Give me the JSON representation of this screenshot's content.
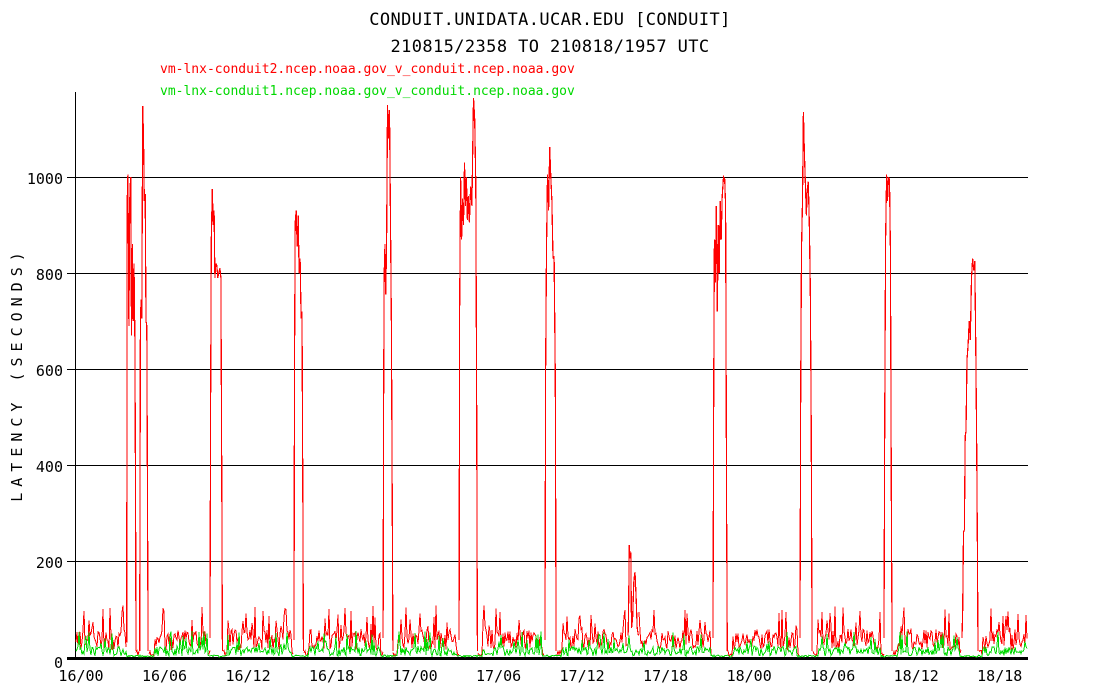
{
  "chart_data": {
    "type": "line",
    "title": "CONDUIT.UNIDATA.UCAR.EDU [CONDUIT]",
    "subtitle": "210815/2358 TO 210818/1957 UTC",
    "ylabel": "LATENCY (SECONDS)",
    "xlabel": "",
    "grid": "horizontal",
    "legend_position": "top-left",
    "ylim": [
      0,
      1177
    ],
    "xlim_hours": [
      -0.43,
      68.03
    ],
    "x_axis_note": "day/hour UTC, hours measured from 16/00",
    "y_ticks": [
      0,
      200,
      400,
      600,
      800,
      1000
    ],
    "x_tick_hours": [
      0,
      6,
      12,
      18,
      24,
      30,
      36,
      42,
      48,
      54,
      60,
      66
    ],
    "x_tick_labels": [
      "16/00",
      "16/06",
      "16/12",
      "16/18",
      "17/00",
      "17/06",
      "17/12",
      "17/18",
      "18/00",
      "18/06",
      "18/12",
      "18/18"
    ],
    "series": [
      {
        "name": "vm-lnx-conduit2.ncep.noaa.gov_v_conduit.ncep.noaa.gov",
        "color": "#ff0000",
        "kind": "noisy-baseline-with-spikes",
        "baseline_noise": {
          "seed": 7,
          "base_min": 14,
          "base_span": 44,
          "burst_prob": 0.12,
          "burst_min": 55,
          "burst_span": 55,
          "quiet_max": 12
        },
        "spikes": [
          {
            "points": [
              [
                3.28,
                30
              ],
              [
                3.32,
                950
              ],
              [
                3.37,
                1005
              ],
              [
                3.44,
                690
              ],
              [
                3.51,
                970
              ],
              [
                3.57,
                1000
              ],
              [
                3.63,
                670
              ],
              [
                3.69,
                860
              ],
              [
                3.75,
                700
              ],
              [
                3.81,
                820
              ],
              [
                3.87,
                660
              ],
              [
                3.92,
                300
              ],
              [
                3.95,
                12
              ]
            ],
            "quiet_before": 0,
            "quiet_until": 4.22,
            "suppress_green": true
          },
          {
            "points": [
              [
                4.22,
                12
              ],
              [
                4.27,
                700
              ],
              [
                4.32,
                745
              ],
              [
                4.37,
                705
              ],
              [
                4.43,
                1148
              ],
              [
                4.49,
                1085
              ],
              [
                4.55,
                950
              ],
              [
                4.61,
                965
              ],
              [
                4.67,
                700
              ],
              [
                4.73,
                690
              ],
              [
                4.78,
                320
              ],
              [
                4.82,
                12
              ]
            ],
            "quiet_before": 0,
            "quiet_until": 5.25,
            "suppress_green": true
          },
          {
            "points": [
              [
                9.27,
                40
              ],
              [
                9.31,
                520
              ],
              [
                9.36,
                870
              ],
              [
                9.43,
                975
              ],
              [
                9.5,
                900
              ],
              [
                9.56,
                930
              ],
              [
                9.62,
                790
              ],
              [
                9.69,
                820
              ],
              [
                9.76,
                815
              ],
              [
                9.83,
                790
              ],
              [
                9.9,
                800
              ],
              [
                9.98,
                810
              ],
              [
                10.05,
                790
              ],
              [
                10.12,
                300
              ],
              [
                10.16,
                12
              ]
            ],
            "quiet_before": 0.2,
            "quiet_until": 10.55,
            "suppress_green": true
          },
          {
            "points": [
              [
                15.3,
                35
              ],
              [
                15.34,
                600
              ],
              [
                15.39,
                905
              ],
              [
                15.46,
                930
              ],
              [
                15.53,
                855
              ],
              [
                15.6,
                920
              ],
              [
                15.67,
                800
              ],
              [
                15.74,
                830
              ],
              [
                15.81,
                705
              ],
              [
                15.88,
                720
              ],
              [
                15.94,
                300
              ],
              [
                15.98,
                12
              ]
            ],
            "quiet_before": 0.2,
            "quiet_until": 16.33,
            "suppress_green": true
          },
          {
            "points": [
              [
                21.7,
                40
              ],
              [
                21.74,
                520
              ],
              [
                21.78,
                800
              ],
              [
                21.84,
                860
              ],
              [
                21.9,
                755
              ],
              [
                21.96,
                890
              ],
              [
                22.02,
                1150
              ],
              [
                22.09,
                1080
              ],
              [
                22.16,
                1140
              ],
              [
                22.23,
                930
              ],
              [
                22.3,
                690
              ],
              [
                22.36,
                300
              ],
              [
                22.41,
                12
              ]
            ],
            "quiet_before": 0.2,
            "quiet_until": 22.73,
            "suppress_green": true
          },
          {
            "points": [
              [
                27.16,
                35
              ],
              [
                27.2,
                715
              ],
              [
                27.27,
                1000
              ],
              [
                27.34,
                870
              ],
              [
                27.41,
                955
              ],
              [
                27.48,
                900
              ],
              [
                27.55,
                1030
              ],
              [
                27.62,
                940
              ],
              [
                27.69,
                1000
              ],
              [
                27.76,
                910
              ],
              [
                27.83,
                960
              ],
              [
                27.9,
                905
              ],
              [
                27.99,
                980
              ],
              [
                28.08,
                940
              ],
              [
                28.2,
                1165
              ],
              [
                28.28,
                1120
              ],
              [
                28.36,
                985
              ],
              [
                28.43,
                500
              ],
              [
                28.48,
                12
              ]
            ],
            "quiet_before": 0.2,
            "quiet_until": 28.83,
            "suppress_green": true
          },
          {
            "points": [
              [
                33.33,
                35
              ],
              [
                33.38,
                590
              ],
              [
                33.44,
                850
              ],
              [
                33.51,
                1005
              ],
              [
                33.59,
                930
              ],
              [
                33.67,
                1062
              ],
              [
                33.75,
                1000
              ],
              [
                33.83,
                950
              ],
              [
                33.91,
                830
              ],
              [
                33.99,
                835
              ],
              [
                34.07,
                580
              ],
              [
                34.13,
                12
              ]
            ],
            "quiet_before": 0.2,
            "quiet_until": 34.5,
            "suppress_green": true
          },
          {
            "points": [
              [
                39.3,
                45
              ],
              [
                39.34,
                100
              ],
              [
                39.39,
                233
              ],
              [
                39.45,
                205
              ],
              [
                39.5,
                218
              ],
              [
                39.55,
                60
              ],
              [
                39.63,
                80
              ],
              [
                39.72,
                160
              ],
              [
                39.8,
                177
              ],
              [
                39.88,
                125
              ],
              [
                39.96,
                60
              ],
              [
                40.04,
                45
              ]
            ],
            "quiet_before": 0,
            "quiet_until": 40.04,
            "suppress_green": false
          },
          {
            "points": [
              [
                45.4,
                40
              ],
              [
                45.45,
                550
              ],
              [
                45.5,
                870
              ],
              [
                45.57,
                780
              ],
              [
                45.64,
                940
              ],
              [
                45.71,
                720
              ],
              [
                45.78,
                900
              ],
              [
                45.85,
                800
              ],
              [
                45.92,
                950
              ],
              [
                45.99,
                870
              ],
              [
                46.06,
                960
              ],
              [
                46.16,
                1000
              ],
              [
                46.24,
                995
              ],
              [
                46.31,
                940
              ],
              [
                46.38,
                300
              ],
              [
                46.43,
                12
              ]
            ],
            "quiet_before": 0.2,
            "quiet_until": 46.8,
            "suppress_green": true
          },
          {
            "points": [
              [
                51.65,
                40
              ],
              [
                51.7,
                560
              ],
              [
                51.76,
                850
              ],
              [
                51.83,
                950
              ],
              [
                51.9,
                1135
              ],
              [
                51.97,
                1050
              ],
              [
                52.04,
                985
              ],
              [
                52.11,
                920
              ],
              [
                52.18,
                975
              ],
              [
                52.25,
                990
              ],
              [
                52.32,
                905
              ],
              [
                52.39,
                770
              ],
              [
                52.46,
                490
              ],
              [
                52.52,
                12
              ]
            ],
            "quiet_before": 0.2,
            "quiet_until": 52.88,
            "suppress_green": true
          },
          {
            "points": [
              [
                57.69,
                40
              ],
              [
                57.74,
                480
              ],
              [
                57.8,
                870
              ],
              [
                57.87,
                1005
              ],
              [
                57.94,
                950
              ],
              [
                58.01,
                1000
              ],
              [
                58.08,
                995
              ],
              [
                58.15,
                850
              ],
              [
                58.22,
                300
              ],
              [
                58.27,
                12
              ]
            ],
            "quiet_before": 0.25,
            "quiet_until": 58.65,
            "suppress_green": true
          },
          {
            "points": [
              [
                63.29,
                40
              ],
              [
                63.34,
                100
              ],
              [
                63.4,
                260
              ],
              [
                63.46,
                265
              ],
              [
                63.52,
                460
              ],
              [
                63.58,
                470
              ],
              [
                63.65,
                620
              ],
              [
                63.73,
                650
              ],
              [
                63.81,
                700
              ],
              [
                63.89,
                660
              ],
              [
                63.97,
                790
              ],
              [
                64.05,
                830
              ],
              [
                64.13,
                805
              ],
              [
                64.21,
                825
              ],
              [
                64.28,
                640
              ],
              [
                64.34,
                460
              ],
              [
                64.39,
                260
              ],
              [
                64.44,
                12
              ]
            ],
            "quiet_before": 0.2,
            "quiet_until": 64.75,
            "suppress_green": true
          }
        ]
      },
      {
        "name": "vm-lnx-conduit1.ncep.noaa.gov_v_conduit.ncep.noaa.gov",
        "color": "#00d800",
        "kind": "noisy-baseline",
        "baseline_noise": {
          "seed": 23,
          "base_min": 2,
          "base_span": 20,
          "burst_prob": 0.12,
          "burst_min": 22,
          "burst_span": 32,
          "quiet_max": 4
        }
      }
    ],
    "colors": {
      "axis": "#000000",
      "background": "#ffffff",
      "red_series": "#ff0000",
      "green_series": "#00d800"
    }
  }
}
